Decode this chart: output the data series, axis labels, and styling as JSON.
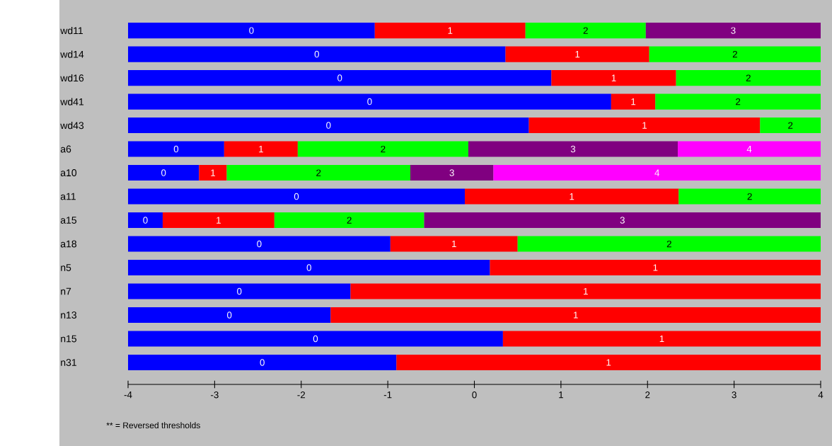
{
  "chart_data": {
    "type": "bar",
    "orientation": "horizontal",
    "categories": [
      "wd11",
      "wd14",
      "wd16",
      "wd41",
      "wd43",
      "a6",
      "a10",
      "a11",
      "a15",
      "a18",
      "n5",
      "n7",
      "n13",
      "n15",
      "n31"
    ],
    "series": [
      {
        "name": "0",
        "color": "#0000ff",
        "base": [
          -4,
          -4,
          -4,
          -4,
          -4,
          -4,
          -4,
          -4,
          -4,
          -4,
          -4,
          -4,
          -4,
          -4,
          -4
        ],
        "values": [
          2.85,
          4.36,
          4.89,
          5.58,
          4.63,
          1.11,
          0.82,
          3.89,
          0.4,
          3.03,
          4.18,
          2.57,
          2.34,
          4.33,
          3.1
        ]
      },
      {
        "name": "1",
        "color": "#ff0000",
        "base": [
          -1.15,
          0.36,
          0.89,
          1.58,
          0.63,
          -2.89,
          -3.18,
          -0.11,
          -3.6,
          -0.97,
          0.18,
          -1.43,
          -1.66,
          0.33,
          -0.9
        ],
        "values": [
          1.74,
          1.66,
          1.44,
          0.51,
          2.67,
          0.85,
          0.32,
          2.47,
          1.29,
          1.47,
          3.82,
          5.43,
          5.66,
          3.67,
          4.9
        ]
      },
      {
        "name": "2",
        "color": "#00ff00",
        "base": [
          0.59,
          2.02,
          2.33,
          2.09,
          3.3,
          -2.04,
          -2.86,
          2.36,
          -2.31,
          0.5,
          null,
          null,
          null,
          null,
          null
        ],
        "values": [
          1.39,
          1.98,
          1.67,
          1.91,
          0.7,
          1.97,
          2.12,
          1.64,
          1.73,
          3.5,
          null,
          null,
          null,
          null,
          null
        ]
      },
      {
        "name": "3",
        "color": "#800080",
        "base": [
          1.98,
          null,
          null,
          null,
          null,
          -0.07,
          -0.74,
          null,
          -0.58,
          null,
          null,
          null,
          null,
          null,
          null
        ],
        "values": [
          2.02,
          null,
          null,
          null,
          null,
          2.42,
          0.96,
          null,
          4.58,
          null,
          null,
          null,
          null,
          null,
          null
        ]
      },
      {
        "name": "4",
        "color": "#ff00ff",
        "base": [
          null,
          null,
          null,
          null,
          null,
          2.35,
          0.22,
          null,
          null,
          null,
          null,
          null,
          null,
          null,
          null
        ],
        "values": [
          null,
          null,
          null,
          null,
          null,
          1.65,
          3.78,
          null,
          null,
          null,
          null,
          null,
          null,
          null,
          null
        ]
      }
    ],
    "xlim": [
      -4,
      4
    ],
    "xticks": [
      -4,
      -3,
      -2,
      -1,
      0,
      1,
      2,
      3,
      4
    ],
    "annotations": [
      "** = Reversed thresholds"
    ]
  }
}
